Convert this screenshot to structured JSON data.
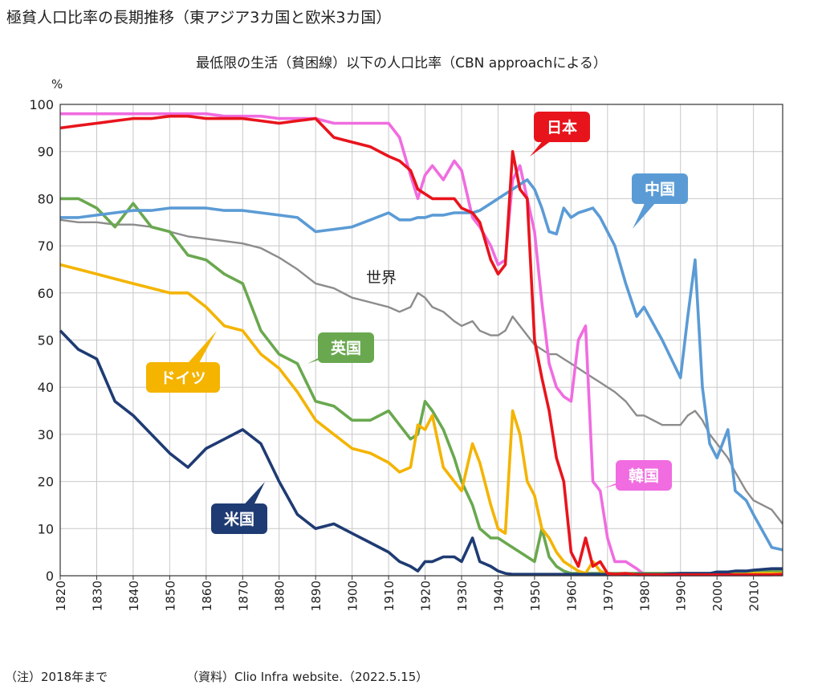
{
  "chart_data": {
    "type": "line",
    "title": "極貧人口比率の長期推移（東アジア3カ国と欧米3カ国）",
    "subtitle": "最低限の生活（貧困線）以下の人口比率（CBN approachによる）",
    "y_unit": "%",
    "notes": [
      "（注）2018年まで",
      "（資料）Clio Infra website.（2022.5.15）"
    ],
    "xlim": [
      1820,
      2018
    ],
    "xticks": [
      1820,
      1830,
      1840,
      1850,
      1860,
      1870,
      1880,
      1890,
      1900,
      1910,
      1920,
      1930,
      1940,
      1950,
      1960,
      1970,
      1980,
      1990,
      2000,
      2010
    ],
    "ylim": [
      0,
      100
    ],
    "yticks": [
      0,
      10,
      20,
      30,
      40,
      50,
      60,
      70,
      80,
      90,
      100
    ],
    "grid": true,
    "x": [
      1820,
      1825,
      1830,
      1835,
      1840,
      1845,
      1850,
      1855,
      1860,
      1865,
      1870,
      1875,
      1880,
      1885,
      1890,
      1895,
      1900,
      1905,
      1910,
      1913,
      1916,
      1918,
      1920,
      1922,
      1925,
      1928,
      1930,
      1933,
      1935,
      1938,
      1940,
      1942,
      1944,
      1946,
      1948,
      1950,
      1952,
      1954,
      1956,
      1958,
      1960,
      1962,
      1964,
      1966,
      1968,
      1970,
      1972,
      1975,
      1978,
      1980,
      1985,
      1990,
      1992,
      1994,
      1996,
      1998,
      2000,
      2003,
      2005,
      2008,
      2010,
      2015,
      2018
    ],
    "series": [
      {
        "name": "世界",
        "color": "#8c8c8c",
        "values": [
          75.5,
          75,
          75,
          74.5,
          74.5,
          74,
          73,
          72,
          71.5,
          71,
          70.5,
          69.5,
          67.5,
          65,
          62,
          61,
          59,
          58,
          57,
          56,
          57,
          60,
          59,
          57,
          56,
          54,
          53,
          54,
          52,
          51,
          51,
          52,
          55,
          53,
          51,
          49,
          48,
          47,
          47,
          46,
          45,
          44,
          43,
          42,
          41,
          40,
          39,
          37,
          34,
          34,
          32,
          32,
          34,
          35,
          33,
          30,
          28,
          25,
          22,
          18,
          16,
          14,
          11
        ]
      },
      {
        "name": "韓国",
        "color": "#f06ce0",
        "values": [
          98,
          98,
          98,
          98,
          98,
          98,
          98,
          98,
          98,
          97.5,
          97.5,
          97.5,
          97,
          97,
          97,
          96,
          96,
          96,
          96,
          93,
          85,
          80,
          85,
          87,
          84,
          88,
          86,
          76,
          74,
          70,
          66,
          67,
          84,
          87,
          80,
          73,
          58,
          45,
          40,
          38,
          37,
          50,
          53,
          20,
          18,
          8,
          3,
          3,
          1.5,
          0.3,
          0.2,
          0.2,
          0.2,
          0.2,
          0.2,
          0.2,
          0.2,
          0.2,
          0.2,
          0.2,
          0.2,
          0.2,
          0.2
        ]
      },
      {
        "name": "英国",
        "color": "#6aa84f",
        "values": [
          80,
          80,
          78,
          74,
          79,
          74,
          73,
          68,
          67,
          64,
          62,
          52,
          47,
          45,
          37,
          36,
          33,
          33,
          35,
          32,
          29,
          30,
          37,
          35,
          31,
          25,
          20,
          15,
          10,
          8,
          8,
          7,
          6,
          5,
          4,
          3,
          10,
          4,
          2,
          1,
          0.5,
          0.5,
          0.5,
          0.5,
          0.5,
          0.5,
          0.5,
          0.5,
          0.5,
          0.5,
          0.5,
          0.5,
          0.5,
          0.5,
          0.5,
          0.5,
          0.5,
          0.5,
          0.5,
          0.8,
          1,
          1,
          1
        ]
      },
      {
        "name": "ドイツ",
        "color": "#f4b400",
        "values": [
          66,
          65,
          64,
          63,
          62,
          61,
          60,
          60,
          57,
          53,
          52,
          47,
          44,
          39,
          33,
          30,
          27,
          26,
          24,
          22,
          23,
          32,
          31,
          34,
          23,
          20,
          18,
          28,
          24,
          15,
          10,
          9,
          35,
          30,
          20,
          17,
          10,
          8,
          5,
          3,
          2,
          1,
          0.5,
          3,
          1,
          0.3,
          0.3,
          0.3,
          0.3,
          0.3,
          0.3,
          0.3,
          0.3,
          0.3,
          0.3,
          0.3,
          0.3,
          0.3,
          0.3,
          0.3,
          0.5,
          0.5,
          0.5
        ]
      },
      {
        "name": "米国",
        "color": "#1f3b73",
        "values": [
          52,
          48,
          46,
          37,
          34,
          30,
          26,
          23,
          27,
          29,
          31,
          28,
          20,
          13,
          10,
          11,
          9,
          7,
          5,
          3,
          2,
          1,
          3,
          3,
          4,
          4,
          3,
          8,
          3,
          2,
          1,
          0.5,
          0.3,
          0.3,
          0.3,
          0.3,
          0.3,
          0.3,
          0.3,
          0.3,
          0.3,
          0.3,
          0.3,
          0.3,
          0.3,
          0.3,
          0.3,
          0.3,
          0.3,
          0.3,
          0.3,
          0.5,
          0.5,
          0.5,
          0.5,
          0.5,
          0.8,
          0.8,
          1,
          1,
          1.2,
          1.5,
          1.5
        ]
      },
      {
        "name": "中国",
        "color": "#5b9bd5",
        "values": [
          76,
          76,
          76.5,
          77,
          77.5,
          77.5,
          78,
          78,
          78,
          77.5,
          77.5,
          77,
          76.5,
          76,
          73,
          73.5,
          74,
          75.5,
          77,
          75.5,
          75.5,
          76,
          76,
          76.5,
          76.5,
          77,
          77,
          77,
          77.5,
          79,
          80,
          81,
          82,
          83,
          84,
          82,
          78,
          73,
          72.5,
          78,
          76,
          77,
          77.5,
          78,
          76,
          73,
          70,
          62,
          55,
          57,
          50,
          42,
          55,
          67,
          40,
          28,
          25,
          31,
          18,
          16,
          13,
          6,
          5.5
        ]
      },
      {
        "name": "日本",
        "color": "#e8141c",
        "values": [
          95,
          95.5,
          96,
          96.5,
          97,
          97,
          97.5,
          97.5,
          97,
          97,
          97,
          96.5,
          96,
          96.5,
          97,
          93,
          92,
          91,
          89,
          88,
          86,
          82,
          81,
          80,
          80,
          80,
          78,
          77,
          75,
          67,
          64,
          66,
          90,
          82,
          80,
          50,
          42,
          35,
          25,
          20,
          5,
          2,
          8,
          2,
          3,
          0.5,
          0.3,
          0.5,
          0.2,
          0.2,
          0.2,
          0.2,
          0.2,
          0.2,
          0.2,
          0.2,
          0.2,
          0.2,
          0.2,
          0.2,
          0.2,
          0.2,
          0.3
        ]
      }
    ]
  }
}
